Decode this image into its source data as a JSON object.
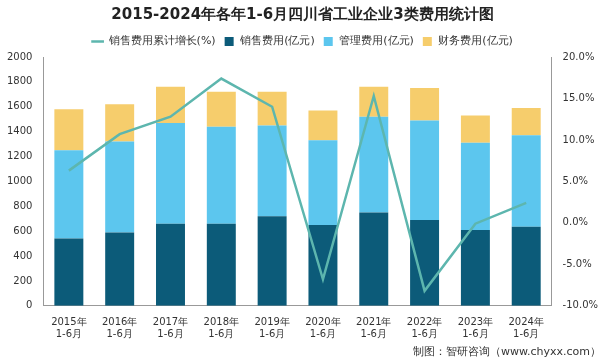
{
  "chart_data": {
    "type": "bar",
    "title": "2015-2024年各年1-6月四川省工业企业3类费用统计图",
    "footer": "制图：智研咨询（www.chyxx.com）",
    "categories": [
      "2015年\n1-6月",
      "2016年\n1-6月",
      "2017年\n1-6月",
      "2018年\n1-6月",
      "2019年\n1-6月",
      "2020年\n1-6月",
      "2021年\n1-6月",
      "2022年\n1-6月",
      "2023年\n1-6月",
      "2024年\n1-6月"
    ],
    "stacked": true,
    "grid": false,
    "legend": "top",
    "series": [
      {
        "name": "销售费用(亿元)",
        "type": "bar",
        "color": "#0c5b79",
        "values": [
          540,
          590,
          660,
          660,
          720,
          650,
          750,
          690,
          610,
          635
        ]
      },
      {
        "name": "管理费用(亿元)",
        "type": "bar",
        "color": "#5cc6ee",
        "values": [
          710,
          730,
          810,
          780,
          730,
          680,
          770,
          800,
          700,
          735
        ]
      },
      {
        "name": "财务费用(亿元)",
        "type": "bar",
        "color": "#f6cd6c",
        "values": [
          330,
          300,
          290,
          280,
          270,
          240,
          240,
          260,
          220,
          220
        ]
      },
      {
        "name": "销售费用累计增长(%)",
        "type": "line",
        "axis": "y2",
        "color": "#5db6ae",
        "marker": "none",
        "line_style": "solid",
        "values": [
          6.3,
          10.7,
          12.8,
          17.4,
          14.0,
          -6.8,
          15.3,
          -8.2,
          -0.1,
          2.4
        ]
      }
    ],
    "ylim": [
      0,
      2000
    ],
    "yticks": [
      0,
      200,
      400,
      600,
      800,
      1000,
      1200,
      1400,
      1600,
      1800,
      2000
    ],
    "y2lim": [
      -10,
      20
    ],
    "y2ticks": [
      {
        "value": -10,
        "label": "-10.0%"
      },
      {
        "value": -5,
        "label": "-5.0%"
      },
      {
        "value": 0,
        "label": "0.0%"
      },
      {
        "value": 5,
        "label": "5.0%"
      },
      {
        "value": 10,
        "label": "10.0%"
      },
      {
        "value": 15,
        "label": "15.0%"
      },
      {
        "value": 20,
        "label": "20.0%"
      }
    ]
  }
}
